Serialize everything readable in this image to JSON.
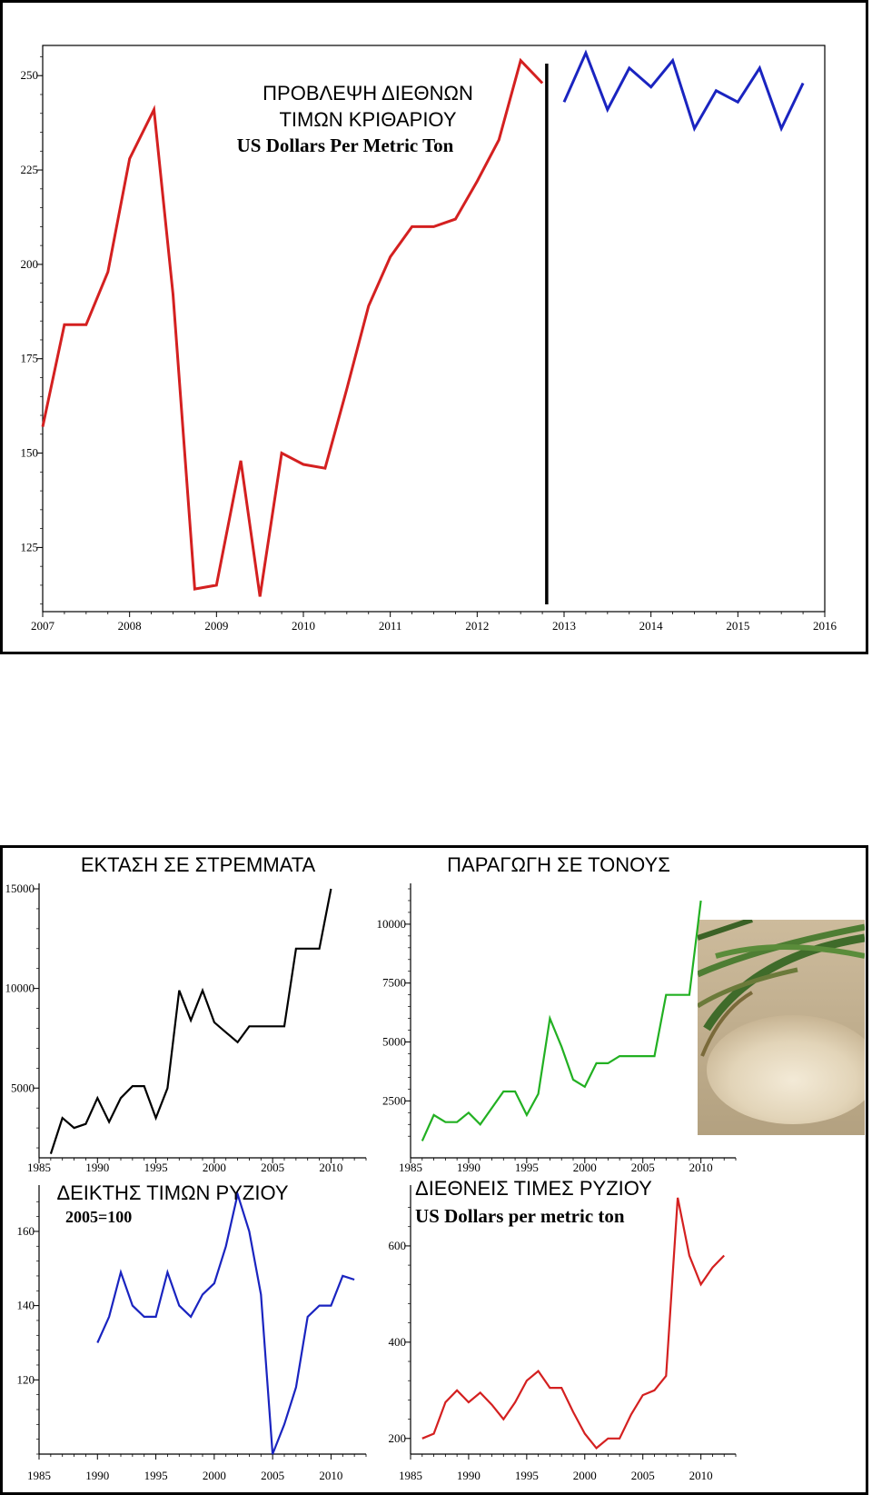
{
  "chart_data": [
    {
      "id": "barley",
      "type": "line",
      "title_lines": [
        "ΠΡΟΒΛΕΨΗ ΔΙΕΘΝΩΝ",
        "ΤΙΜΩΝ ΚΡΙΘΑΡΙΟΥ",
        "US Dollars Per Metric Ton"
      ],
      "xlim": [
        2007,
        2016
      ],
      "ylim": [
        108,
        258
      ],
      "x_ticks": [
        "2007",
        "2008",
        "2009",
        "2010",
        "2011",
        "2012",
        "2013",
        "2014",
        "2015",
        "2016"
      ],
      "y_ticks": [
        "125",
        "150",
        "175",
        "200",
        "225",
        "250"
      ],
      "forecast_divider_x": 2012.8,
      "series": [
        {
          "role": "historical",
          "color": "#d42020",
          "x": [
            2007.0,
            2007.25,
            2007.5,
            2007.75,
            2008.0,
            2008.28,
            2008.5,
            2008.75,
            2009.0,
            2009.28,
            2009.5,
            2009.75,
            2010.0,
            2010.25,
            2010.5,
            2010.75,
            2011.0,
            2011.25,
            2011.5,
            2011.75,
            2012.0,
            2012.25,
            2012.5,
            2012.75
          ],
          "y": [
            157,
            184,
            184,
            198,
            228,
            241,
            192,
            114,
            115,
            148,
            112,
            150,
            147,
            146,
            167,
            189,
            202,
            210,
            210,
            212,
            222,
            233,
            254,
            248
          ]
        },
        {
          "role": "forecast",
          "color": "#1a24c0",
          "x": [
            2013.0,
            2013.25,
            2013.5,
            2013.75,
            2014.0,
            2014.25,
            2014.5,
            2014.75,
            2015.0,
            2015.25,
            2015.5,
            2015.75
          ],
          "y": [
            243,
            256,
            241,
            252,
            247,
            254,
            236,
            246,
            243,
            252,
            236,
            248
          ]
        }
      ]
    },
    {
      "id": "area",
      "type": "line",
      "title": "ΕΚΤΑΣΗ ΣΕ ΣΤΡΕΜΜΑΤΑ",
      "xlim": [
        1985,
        2013
      ],
      "ylim": [
        1500,
        15000
      ],
      "x_ticks": [
        "1985",
        "1990",
        "1995",
        "2000",
        "2005",
        "2010"
      ],
      "y_ticks": [
        "5000",
        "10000",
        "15000"
      ],
      "series": [
        {
          "color": "#000000",
          "x": [
            1986,
            1987,
            1988,
            1989,
            1990,
            1991,
            1992,
            1993,
            1994,
            1995,
            1996,
            1997,
            1998,
            1999,
            2000,
            2001,
            2002,
            2003,
            2004,
            2005,
            2006,
            2007,
            2008,
            2009,
            2010
          ],
          "y": [
            1700,
            3500,
            3000,
            3200,
            4500,
            3300,
            4500,
            5100,
            5100,
            3500,
            5000,
            9900,
            8400,
            9900,
            8300,
            7800,
            7300,
            8100,
            8100,
            8100,
            8100,
            12000,
            12000,
            12000,
            15000
          ]
        }
      ]
    },
    {
      "id": "production",
      "type": "line",
      "title": "ΠΑΡΑΓΩΓΗ ΣΕ ΤΟΝΟΥΣ",
      "xlim": [
        1985,
        2013
      ],
      "ylim": [
        700,
        11500
      ],
      "x_ticks": [
        "1985",
        "1990",
        "1995",
        "2000",
        "2005",
        "2010"
      ],
      "y_ticks": [
        "2500",
        "5000",
        "7500",
        "10000"
      ],
      "series": [
        {
          "color": "#22b022",
          "x": [
            1986,
            1987,
            1988,
            1989,
            1990,
            1991,
            1992,
            1993,
            1994,
            1995,
            1996,
            1997,
            1998,
            1999,
            2000,
            2001,
            2002,
            2003,
            2004,
            2005,
            2006,
            2007,
            2008,
            2009,
            2010
          ],
          "y": [
            800,
            1900,
            1600,
            1600,
            2000,
            1500,
            2200,
            2900,
            2900,
            1900,
            2800,
            6000,
            4800,
            3400,
            3100,
            4100,
            4100,
            4400,
            4400,
            4400,
            4400,
            7000,
            7000,
            7000,
            11000
          ]
        }
      ]
    },
    {
      "id": "price-index",
      "type": "line",
      "title": "ΔΕΙΚΤΗΣ ΤΙΜΩΝ ΡΥΖΙΟΥ",
      "subtitle": "2005=100",
      "xlim": [
        1985,
        2013
      ],
      "ylim": [
        100,
        171
      ],
      "x_ticks": [
        "1985",
        "1990",
        "1995",
        "2000",
        "2005",
        "2010"
      ],
      "y_ticks": [
        "120",
        "140",
        "160"
      ],
      "series": [
        {
          "color": "#1a24c0",
          "x": [
            1990,
            1991,
            1992,
            1993,
            1994,
            1995,
            1996,
            1997,
            1998,
            1999,
            2000,
            2001,
            2002,
            2003,
            2004,
            2005,
            2006,
            2007,
            2008,
            2009,
            2010,
            2011,
            2012
          ],
          "y": [
            130,
            137,
            149,
            140,
            137,
            137,
            149,
            140,
            137,
            143,
            146,
            156,
            170,
            160,
            143,
            100,
            108,
            118,
            137,
            140,
            140,
            148,
            147
          ]
        }
      ]
    },
    {
      "id": "intl-prices",
      "type": "line",
      "title": "ΔΙΕΘΝΕΙΣ ΤΙΜΕΣ ΡΥΖΙΟΥ",
      "subtitle": "US Dollars per metric ton",
      "xlim": [
        1985,
        2013
      ],
      "ylim": [
        175,
        715
      ],
      "x_ticks": [
        "1985",
        "1990",
        "1995",
        "2000",
        "2005",
        "2010"
      ],
      "y_ticks": [
        "200",
        "400",
        "600"
      ],
      "series": [
        {
          "color": "#d42020",
          "x": [
            1986,
            1987,
            1988,
            1989,
            1990,
            1991,
            1992,
            1993,
            1994,
            1995,
            1996,
            1997,
            1998,
            1999,
            2000,
            2001,
            2002,
            2003,
            2004,
            2005,
            2006,
            2007,
            2008,
            2009,
            2010,
            2011,
            2012
          ],
          "y": [
            200,
            210,
            275,
            300,
            275,
            295,
            270,
            240,
            275,
            320,
            340,
            305,
            305,
            255,
            210,
            180,
            200,
            200,
            250,
            290,
            300,
            330,
            700,
            580,
            520,
            555,
            580
          ]
        }
      ]
    }
  ]
}
